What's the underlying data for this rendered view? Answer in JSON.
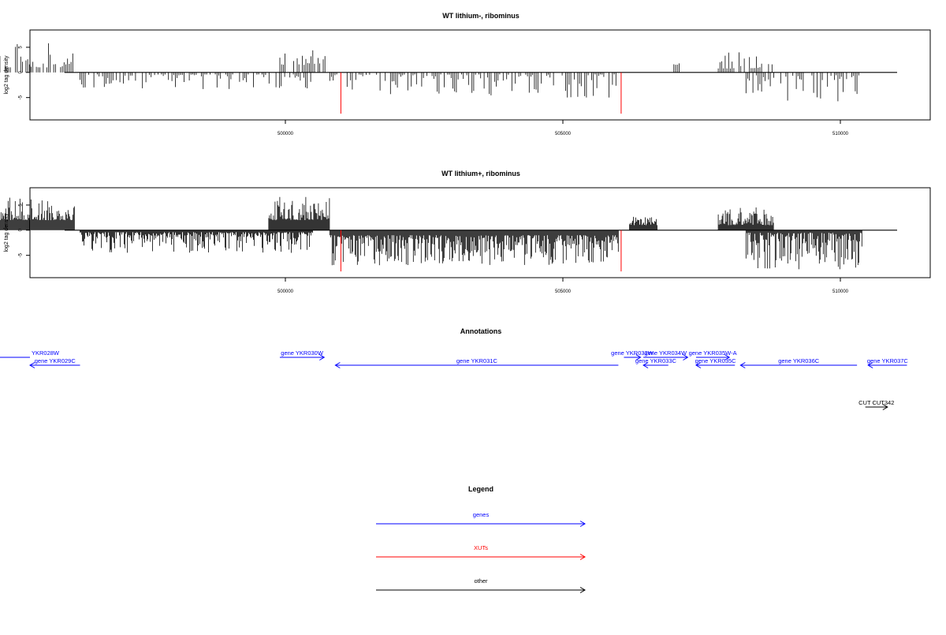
{
  "chart_data": [
    {
      "type": "bar",
      "title": "WT lithium-, ribominus",
      "ylabel": "log2 tag density",
      "xlabel": "",
      "xlim": [
        492000,
        508800
      ],
      "ylim": [
        -8.5,
        7.5
      ],
      "yticks": [
        -5,
        0,
        5
      ],
      "xticks": [
        500000,
        505000,
        510000
      ],
      "xtick_labels": [
        "500000",
        "505000",
        "510000"
      ],
      "grid": false,
      "density": "sparse",
      "segments": [
        {
          "start": 493200,
          "end": 496200,
          "sign": 1,
          "peak": 5.8,
          "min": 1.0
        },
        {
          "start": 496300,
          "end": 500500,
          "sign": -1,
          "peak": -3.4,
          "min": -0.4
        },
        {
          "start": 499900,
          "end": 500800,
          "sign": 1,
          "peak": 4.4,
          "min": 1.5
        },
        {
          "start": 500800,
          "end": 506000,
          "sign": -1,
          "peak": -5.0,
          "min": -0.4
        },
        {
          "start": 507000,
          "end": 507100,
          "sign": 1,
          "peak": 3.0,
          "min": 1.5
        },
        {
          "start": 507800,
          "end": 508800,
          "sign": 1,
          "peak": 4.0,
          "min": 0.8
        },
        {
          "start": 508300,
          "end": 510400,
          "sign": -1,
          "peak": -6.0,
          "min": -0.5
        }
      ],
      "highlights": [
        {
          "x": 501000,
          "value": -8.2,
          "color": "#ff0000"
        },
        {
          "x": 506050,
          "value": -8.2,
          "color": "#ff0000"
        }
      ]
    },
    {
      "type": "bar",
      "title": "WT lithium+, ribominus",
      "ylabel": "log2 tag density",
      "xlabel": "",
      "xlim": [
        492000,
        508800
      ],
      "ylim": [
        -8.5,
        7.5
      ],
      "yticks": [
        -5,
        0,
        5
      ],
      "xticks": [
        500000,
        505000,
        510000
      ],
      "xtick_labels": [
        "500000",
        "505000",
        "510000"
      ],
      "grid": false,
      "density": "dense",
      "segments": [
        {
          "start": 493200,
          "end": 496200,
          "sign": 1,
          "peak": 6.5,
          "min": 2.0
        },
        {
          "start": 496300,
          "end": 500500,
          "sign": -1,
          "peak": -4.5,
          "min": -0.4
        },
        {
          "start": 499700,
          "end": 500800,
          "sign": 1,
          "peak": 6.8,
          "min": 2.0
        },
        {
          "start": 500800,
          "end": 506000,
          "sign": -1,
          "peak": -7.0,
          "min": -1.0
        },
        {
          "start": 506200,
          "end": 506700,
          "sign": 1,
          "peak": 2.8,
          "min": 1.0
        },
        {
          "start": 507800,
          "end": 508800,
          "sign": 1,
          "peak": 4.6,
          "min": 1.0
        },
        {
          "start": 508300,
          "end": 510400,
          "sign": -1,
          "peak": -8.0,
          "min": -0.5
        }
      ],
      "highlights": [
        {
          "x": 501000,
          "value": -8.2,
          "color": "#ff0000"
        },
        {
          "x": 506050,
          "value": -8.2,
          "color": "#ff0000"
        }
      ]
    }
  ],
  "annotations": {
    "title": "Annotations",
    "features": [
      {
        "label": "YKR028W",
        "type": "gene",
        "strand": "+",
        "start": 492000,
        "end": 493800,
        "row": 0
      },
      {
        "label": "gene YKR029C",
        "type": "gene",
        "strand": "-",
        "start": 493800,
        "end": 496300,
        "row": 1
      },
      {
        "label": "gene YKR030W",
        "type": "gene",
        "strand": "+",
        "start": 499900,
        "end": 500700,
        "row": 0
      },
      {
        "label": "gene YKR031C",
        "type": "gene",
        "strand": "-",
        "start": 500900,
        "end": 506000,
        "row": 1
      },
      {
        "label": "gene YKR032W",
        "type": "gene",
        "strand": "+",
        "start": 506100,
        "end": 506400,
        "row": 0
      },
      {
        "label": "gene YKR033C",
        "type": "gene",
        "strand": "-",
        "start": 506450,
        "end": 506900,
        "row": 1
      },
      {
        "label": "gene YKR034W",
        "type": "gene",
        "strand": "+",
        "start": 506450,
        "end": 507250,
        "row": 0
      },
      {
        "label": "gene YKR035W-A",
        "type": "gene",
        "strand": "+",
        "start": 507400,
        "end": 508000,
        "row": 0
      },
      {
        "label": "gene YKR035C",
        "type": "gene",
        "strand": "-",
        "start": 507400,
        "end": 508100,
        "row": 1
      },
      {
        "label": "gene YKR036C",
        "type": "gene",
        "strand": "-",
        "start": 508200,
        "end": 510300,
        "row": 1
      },
      {
        "label": "gene YKR037C",
        "type": "gene",
        "strand": "-",
        "start": 510500,
        "end": 511200,
        "row": 1
      },
      {
        "label": "CUT CUT342",
        "type": "other",
        "strand": "+",
        "start": 510450,
        "end": 510850,
        "row": 2
      }
    ]
  },
  "legend": {
    "title": "Legend",
    "items": [
      {
        "label": "genes",
        "color": "#0000ff"
      },
      {
        "label": "XUTs",
        "color": "#ff0000"
      },
      {
        "label": "other",
        "color": "#000000"
      }
    ]
  }
}
